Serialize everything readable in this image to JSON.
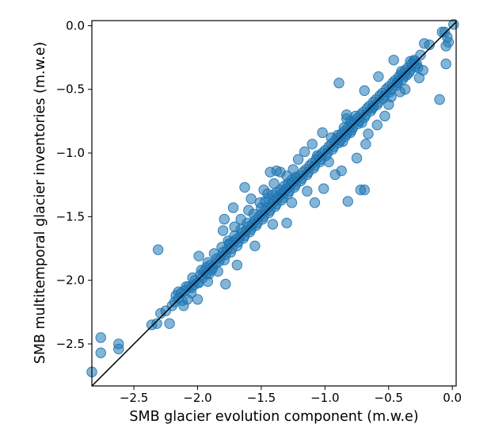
{
  "chart_data": {
    "type": "scatter",
    "xlabel": "SMB glacier evolution component (m.w.e)",
    "ylabel": "SMB multitemporal glacier inventories (m.w.e)",
    "xlim": [
      -2.83,
      0.03
    ],
    "ylim": [
      -2.83,
      0.04
    ],
    "xticks": [
      -2.5,
      -2.0,
      -1.5,
      -1.0,
      -0.5,
      0.0
    ],
    "xtick_labels": [
      "−2.5",
      "−2.0",
      "−1.5",
      "−1.0",
      "−0.5",
      "0.0"
    ],
    "yticks": [
      0.0,
      -0.5,
      -1.0,
      -1.5,
      -2.0,
      -2.5
    ],
    "ytick_labels": [
      "0.0",
      "−0.5",
      "−1.0",
      "−1.5",
      "−2.0",
      "−2.5"
    ],
    "grid": false,
    "point_color": "#1f77b4",
    "point_alpha": 0.55,
    "line_color": "#000000",
    "reference_line": [
      [
        -2.83,
        -2.83
      ],
      [
        0.03,
        0.03
      ]
    ],
    "points": [
      [
        -2.76,
        -2.45
      ],
      [
        -2.76,
        -2.57
      ],
      [
        -2.62,
        -2.5
      ],
      [
        -2.62,
        -2.54
      ],
      [
        -2.83,
        -2.72
      ],
      [
        -2.32,
        -2.34
      ],
      [
        -2.36,
        -2.35
      ],
      [
        -2.29,
        -2.26
      ],
      [
        -2.22,
        -2.34
      ],
      [
        -2.25,
        -2.24
      ],
      [
        -2.2,
        -2.2
      ],
      [
        -2.17,
        -2.12
      ],
      [
        -2.15,
        -2.09
      ],
      [
        -2.13,
        -2.1
      ],
      [
        -2.1,
        -2.08
      ],
      [
        -2.08,
        -2.15
      ],
      [
        -2.05,
        -2.06
      ],
      [
        -2.03,
        -2.04
      ],
      [
        -2.0,
        -2.02
      ],
      [
        -1.98,
        -1.96
      ],
      [
        -1.95,
        -1.93
      ],
      [
        -1.93,
        -1.95
      ],
      [
        -1.9,
        -1.88
      ],
      [
        -1.88,
        -1.9
      ],
      [
        -1.85,
        -1.83
      ],
      [
        -1.83,
        -1.85
      ],
      [
        -1.8,
        -1.78
      ],
      [
        -1.78,
        -1.8
      ],
      [
        -1.75,
        -1.72
      ],
      [
        -1.73,
        -1.75
      ],
      [
        -1.7,
        -1.68
      ],
      [
        -1.68,
        -1.7
      ],
      [
        -1.65,
        -1.63
      ],
      [
        -1.63,
        -1.65
      ],
      [
        -1.6,
        -1.58
      ],
      [
        -1.58,
        -1.6
      ],
      [
        -1.55,
        -1.53
      ],
      [
        -1.53,
        -1.55
      ],
      [
        -1.5,
        -1.48
      ],
      [
        -1.48,
        -1.5
      ],
      [
        -1.45,
        -1.43
      ],
      [
        -1.43,
        -1.45
      ],
      [
        -1.4,
        -1.38
      ],
      [
        -1.38,
        -1.4
      ],
      [
        -1.35,
        -1.33
      ],
      [
        -1.33,
        -1.35
      ],
      [
        -1.3,
        -1.28
      ],
      [
        -1.28,
        -1.3
      ],
      [
        -1.25,
        -1.23
      ],
      [
        -1.23,
        -1.25
      ],
      [
        -1.2,
        -1.18
      ],
      [
        -1.18,
        -1.2
      ],
      [
        -1.15,
        -1.13
      ],
      [
        -1.13,
        -1.15
      ],
      [
        -1.1,
        -1.08
      ],
      [
        -1.08,
        -1.1
      ],
      [
        -1.05,
        -1.03
      ],
      [
        -1.03,
        -1.05
      ],
      [
        -1.0,
        -0.98
      ],
      [
        -0.98,
        -1.0
      ],
      [
        -0.95,
        -0.93
      ],
      [
        -0.93,
        -0.95
      ],
      [
        -0.9,
        -0.88
      ],
      [
        -0.88,
        -0.9
      ],
      [
        -0.85,
        -0.83
      ],
      [
        -0.83,
        -0.85
      ],
      [
        -0.8,
        -0.78
      ],
      [
        -0.78,
        -0.8
      ],
      [
        -0.75,
        -0.73
      ],
      [
        -0.73,
        -0.75
      ],
      [
        -0.7,
        -0.68
      ],
      [
        -0.68,
        -0.7
      ],
      [
        -0.65,
        -0.63
      ],
      [
        -0.63,
        -0.65
      ],
      [
        -0.6,
        -0.58
      ],
      [
        -0.58,
        -0.6
      ],
      [
        -0.55,
        -0.53
      ],
      [
        -0.53,
        -0.55
      ],
      [
        -0.5,
        -0.48
      ],
      [
        -0.48,
        -0.5
      ],
      [
        -0.45,
        -0.43
      ],
      [
        -0.43,
        -0.45
      ],
      [
        -0.4,
        -0.38
      ],
      [
        -0.38,
        -0.4
      ],
      [
        -0.35,
        -0.33
      ],
      [
        -0.33,
        -0.35
      ],
      [
        -0.3,
        -0.28
      ],
      [
        -0.28,
        -0.3
      ],
      [
        -0.25,
        -0.23
      ],
      [
        -0.23,
        -0.35
      ],
      [
        -2.15,
        -2.14
      ],
      [
        -2.12,
        -2.16
      ],
      [
        -2.07,
        -2.05
      ],
      [
        -2.05,
        -2.1
      ],
      [
        -2.02,
        -2.0
      ],
      [
        -1.99,
        -2.02
      ],
      [
        -1.97,
        -1.92
      ],
      [
        -1.96,
        -1.98
      ],
      [
        -1.93,
        -1.9
      ],
      [
        -1.91,
        -1.95
      ],
      [
        -1.89,
        -1.92
      ],
      [
        -1.86,
        -1.87
      ],
      [
        -1.84,
        -1.93
      ],
      [
        -1.82,
        -1.82
      ],
      [
        -1.79,
        -1.84
      ],
      [
        -1.77,
        -1.76
      ],
      [
        -1.74,
        -1.78
      ],
      [
        -1.72,
        -1.7
      ],
      [
        -1.69,
        -1.73
      ],
      [
        -1.67,
        -1.66
      ],
      [
        -1.64,
        -1.67
      ],
      [
        -1.62,
        -1.61
      ],
      [
        -1.59,
        -1.62
      ],
      [
        -1.57,
        -1.56
      ],
      [
        -1.54,
        -1.57
      ],
      [
        -1.52,
        -1.5
      ],
      [
        -1.49,
        -1.52
      ],
      [
        -1.47,
        -1.45
      ],
      [
        -1.44,
        -1.47
      ],
      [
        -1.42,
        -1.4
      ],
      [
        -1.39,
        -1.42
      ],
      [
        -1.37,
        -1.35
      ],
      [
        -1.34,
        -1.37
      ],
      [
        -1.32,
        -1.3
      ],
      [
        -1.29,
        -1.32
      ],
      [
        -1.27,
        -1.25
      ],
      [
        -1.24,
        -1.27
      ],
      [
        -1.22,
        -1.2
      ],
      [
        -1.19,
        -1.22
      ],
      [
        -1.17,
        -1.15
      ],
      [
        -1.14,
        -1.17
      ],
      [
        -1.12,
        -1.1
      ],
      [
        -1.09,
        -1.12
      ],
      [
        -1.07,
        -1.05
      ],
      [
        -1.04,
        -1.07
      ],
      [
        -1.02,
        -1.0
      ],
      [
        -0.99,
        -1.02
      ],
      [
        -0.97,
        -0.95
      ],
      [
        -0.94,
        -0.97
      ],
      [
        -0.92,
        -0.9
      ],
      [
        -0.89,
        -0.92
      ],
      [
        -0.87,
        -0.85
      ],
      [
        -0.84,
        -0.87
      ],
      [
        -0.82,
        -0.8
      ],
      [
        -0.79,
        -0.82
      ],
      [
        -0.77,
        -0.75
      ],
      [
        -0.74,
        -0.77
      ],
      [
        -0.72,
        -0.7
      ],
      [
        -0.69,
        -0.72
      ],
      [
        -0.67,
        -0.65
      ],
      [
        -0.64,
        -0.67
      ],
      [
        -0.62,
        -0.6
      ],
      [
        -0.59,
        -0.62
      ],
      [
        -0.57,
        -0.55
      ],
      [
        -0.54,
        -0.57
      ],
      [
        -0.52,
        -0.5
      ],
      [
        -0.49,
        -0.52
      ],
      [
        -0.47,
        -0.45
      ],
      [
        -0.44,
        -0.47
      ],
      [
        -0.42,
        -0.4
      ],
      [
        -0.39,
        -0.42
      ],
      [
        -0.37,
        -0.35
      ],
      [
        -0.34,
        -0.37
      ],
      [
        -0.32,
        -0.3
      ],
      [
        -0.29,
        -0.32
      ],
      [
        -2.31,
        -1.76
      ],
      [
        -1.63,
        -1.27
      ],
      [
        -1.79,
        -1.52
      ],
      [
        -1.72,
        -1.43
      ],
      [
        -1.8,
        -1.61
      ],
      [
        -1.58,
        -1.36
      ],
      [
        -1.43,
        -1.15
      ],
      [
        -1.35,
        -1.15
      ],
      [
        -1.38,
        -1.14
      ],
      [
        -1.48,
        -1.29
      ],
      [
        -1.25,
        -1.13
      ],
      [
        -1.02,
        -0.84
      ],
      [
        -0.89,
        -0.45
      ],
      [
        -0.69,
        -0.51
      ],
      [
        -0.58,
        -0.4
      ],
      [
        -0.46,
        -0.27
      ],
      [
        -0.3,
        -0.27
      ],
      [
        -0.22,
        -0.14
      ],
      [
        -0.18,
        -0.15
      ],
      [
        -0.08,
        -0.05
      ],
      [
        -0.06,
        -0.05
      ],
      [
        -0.04,
        -0.09
      ],
      [
        -0.03,
        -0.13
      ],
      [
        -0.05,
        -0.16
      ],
      [
        0.01,
        0.01
      ],
      [
        -0.1,
        -0.58
      ],
      [
        -0.05,
        -0.3
      ],
      [
        -0.41,
        -0.52
      ],
      [
        -0.48,
        -0.56
      ],
      [
        -0.62,
        -0.64
      ],
      [
        -0.75,
        -1.04
      ],
      [
        -0.72,
        -1.29
      ],
      [
        -0.69,
        -1.29
      ],
      [
        -0.82,
        -1.38
      ],
      [
        -0.87,
        -1.14
      ],
      [
        -0.92,
        -1.17
      ],
      [
        -0.97,
        -1.07
      ],
      [
        -1.01,
        -1.28
      ],
      [
        -1.08,
        -1.39
      ],
      [
        -1.14,
        -1.3
      ],
      [
        -1.26,
        -1.39
      ],
      [
        -1.3,
        -1.55
      ],
      [
        -1.41,
        -1.56
      ],
      [
        -1.55,
        -1.73
      ],
      [
        -1.69,
        -1.88
      ],
      [
        -1.78,
        -2.03
      ],
      [
        -1.92,
        -2.01
      ],
      [
        -2.0,
        -2.15
      ],
      [
        -2.18,
        -2.17
      ],
      [
        -2.11,
        -2.2
      ],
      [
        -0.8,
        -0.75
      ],
      [
        -0.83,
        -0.7
      ],
      [
        -0.83,
        -0.73
      ],
      [
        -0.68,
        -0.93
      ],
      [
        -0.66,
        -0.85
      ],
      [
        -0.59,
        -0.78
      ],
      [
        -0.53,
        -0.71
      ],
      [
        -0.5,
        -0.62
      ],
      [
        -0.43,
        -0.44
      ],
      [
        -0.37,
        -0.5
      ],
      [
        -0.86,
        -0.91
      ],
      [
        -0.95,
        -0.88
      ],
      [
        -1.06,
        -1.02
      ],
      [
        -1.1,
        -0.93
      ],
      [
        -1.16,
        -0.99
      ],
      [
        -1.21,
        -1.05
      ],
      [
        -1.3,
        -1.18
      ],
      [
        -1.4,
        -1.24
      ],
      [
        -1.45,
        -1.32
      ],
      [
        -1.51,
        -1.39
      ],
      [
        -1.6,
        -1.45
      ],
      [
        -1.66,
        -1.52
      ],
      [
        -1.71,
        -1.58
      ],
      [
        -1.76,
        -1.69
      ],
      [
        -1.81,
        -1.74
      ],
      [
        -1.87,
        -1.79
      ],
      [
        -1.92,
        -1.86
      ],
      [
        -1.99,
        -1.81
      ],
      [
        -2.04,
        -1.98
      ],
      [
        -2.09,
        -2.05
      ],
      [
        -1.5,
        -1.43
      ],
      [
        -1.47,
        -1.38
      ],
      [
        -1.44,
        -1.36
      ],
      [
        -1.41,
        -1.33
      ],
      [
        -1.38,
        -1.31
      ],
      [
        -1.35,
        -1.29
      ],
      [
        -1.32,
        -1.26
      ],
      [
        -1.29,
        -1.24
      ],
      [
        -1.26,
        -1.21
      ],
      [
        -1.23,
        -1.19
      ],
      [
        -1.56,
        -1.48
      ],
      [
        -1.61,
        -1.55
      ],
      [
        -1.66,
        -1.6
      ],
      [
        -1.71,
        -1.65
      ],
      [
        -1.75,
        -1.71
      ],
      [
        -0.9,
        -0.86
      ],
      [
        -0.85,
        -0.8
      ],
      [
        -0.8,
        -0.84
      ],
      [
        -0.76,
        -0.71
      ],
      [
        -0.71,
        -0.76
      ],
      [
        -0.33,
        -0.28
      ],
      [
        -0.27,
        -0.33
      ],
      [
        -0.36,
        -0.39
      ],
      [
        -0.4,
        -0.36
      ],
      [
        -0.26,
        -0.41
      ]
    ]
  }
}
